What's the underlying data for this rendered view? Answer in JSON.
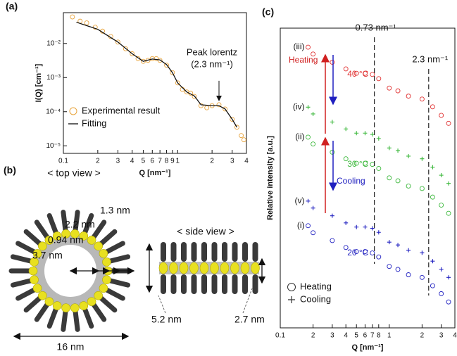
{
  "chart_data": [
    {
      "type": "scatter",
      "panel_label": "(a)",
      "x_label": "Q [nm⁻¹]",
      "y_label": "I(Q) [cm⁻¹]",
      "xlog": true,
      "ylog": true,
      "xlim": [
        0.1,
        4
      ],
      "ylim": [
        6e-06,
        0.08
      ],
      "xticks": [
        0.1,
        {
          "value": 0.2,
          "label": "2"
        },
        {
          "value": 0.3,
          "label": "3"
        },
        {
          "value": 0.4,
          "label": "4"
        },
        {
          "value": 0.5,
          "label": "5"
        },
        {
          "value": 0.6,
          "label": "6"
        },
        {
          "value": 0.7,
          "label": "7"
        },
        {
          "value": 0.8,
          "label": "8"
        },
        {
          "value": 0.9,
          "label": "9"
        },
        1,
        2,
        3,
        4
      ],
      "yticks": [
        {
          "value": 0.01,
          "label": "10⁻²"
        },
        {
          "value": 0.001,
          "label": "10⁻³"
        },
        {
          "value": 0.0001,
          "label": "10⁻⁴"
        },
        {
          "value": 1e-05,
          "label": "10⁻⁵"
        }
      ],
      "legend": "lower left",
      "annotation": {
        "x": 2.3,
        "y": 0.00016,
        "lines": [
          "Peak lorentz",
          "(2.3 nm⁻¹)"
        ]
      },
      "series": [
        {
          "name": "Experimental result",
          "color": "#e8a33a",
          "style": "markers",
          "marker": "circle",
          "x": [
            0.12,
            0.14,
            0.16,
            0.19,
            0.22,
            0.26,
            0.3,
            0.35,
            0.4,
            0.45,
            0.5,
            0.55,
            0.6,
            0.65,
            0.7,
            0.8,
            0.9,
            1.0,
            1.1,
            1.2,
            1.3,
            1.4,
            1.6,
            1.8,
            2.0,
            2.3,
            2.6,
            3.0,
            3.3,
            3.6,
            3.8
          ],
          "values": [
            0.06,
            0.045,
            0.04,
            0.03,
            0.023,
            0.016,
            0.011,
            0.007,
            0.005,
            0.0036,
            0.003,
            0.0032,
            0.0036,
            0.0036,
            0.0032,
            0.0023,
            0.0014,
            0.0007,
            0.00045,
            0.00038,
            0.00035,
            0.00028,
            0.00015,
            0.00013,
            0.00015,
            0.00016,
            0.00012,
            6e-05,
            3.5e-05,
            2e-05,
            1.5e-05
          ]
        },
        {
          "name": "Fitting",
          "color": "#111111",
          "style": "line",
          "x": [
            0.13,
            0.2,
            0.3,
            0.4,
            0.5,
            0.6,
            0.7,
            0.8,
            0.9,
            1.0,
            1.2,
            1.4,
            1.6,
            2.0,
            2.3,
            2.6,
            3.0,
            3.3
          ],
          "values": [
            0.042,
            0.026,
            0.011,
            0.005,
            0.003,
            0.0035,
            0.0033,
            0.0024,
            0.0014,
            0.0007,
            0.00038,
            0.00029,
            0.00016,
            0.00015,
            0.00015,
            0.00012,
            6e-05,
            3.5e-05
          ]
        }
      ]
    },
    {
      "type": "scatter",
      "panel_label": "(c)",
      "x_label": "Q [nm⁻¹]",
      "y_label": "Relative intensity [a.u.]",
      "xlog": true,
      "ylog": true,
      "xlim": [
        0.1,
        4
      ],
      "ylim": [
        1e-11,
        1
      ],
      "xticks": [
        0.1,
        {
          "value": 0.2,
          "label": "2"
        },
        {
          "value": 0.3,
          "label": "3"
        },
        {
          "value": 0.4,
          "label": "4"
        },
        {
          "value": 0.5,
          "label": "5"
        },
        {
          "value": 0.6,
          "label": "6"
        },
        {
          "value": 0.7,
          "label": "7"
        },
        {
          "value": 0.8,
          "label": "8"
        },
        1,
        2,
        3,
        4
      ],
      "vlines": [
        {
          "value": 0.73,
          "label": "0.73 nm⁻¹"
        },
        {
          "value": 2.3,
          "label": "2.3 nm⁻¹"
        }
      ],
      "heating_label": "Heating",
      "cooling_label": "Cooling",
      "legend_entries": [
        {
          "marker": "circle",
          "label": "Heating"
        },
        {
          "marker": "plus",
          "label": "Cooling"
        }
      ],
      "legend": "lower left",
      "x": [
        0.18,
        0.2,
        0.3,
        0.4,
        0.5,
        0.6,
        0.7,
        0.8,
        1.0,
        1.2,
        1.5,
        2.0,
        2.5,
        3.0,
        3.5
      ],
      "series": [
        {
          "name": "(iii)",
          "temperature": "40 °C",
          "color": "#e03030",
          "style": "markers",
          "marker": "circle",
          "values": [
            0.2,
            0.112,
            0.056,
            0.032,
            0.022,
            0.022,
            0.02,
            0.014,
            0.0063,
            0.005,
            0.0032,
            0.0025,
            0.0013,
            0.00063,
            0.00032
          ]
        },
        {
          "name": "(iv)",
          "color": "#3cb83c",
          "style": "markers",
          "marker": "plus",
          "values": [
            0.00126,
            0.00071,
            0.00036,
            0.0002,
            0.00014,
            0.00014,
            0.000126,
            8.9e-05,
            4e-05,
            3.2e-05,
            2e-05,
            1.6e-05,
            7.9e-06,
            4e-06,
            2e-06
          ]
        },
        {
          "name": "(ii)",
          "temperature": "30 °C",
          "color": "#3cb83c",
          "style": "markers",
          "marker": "circle",
          "values": [
            0.0001,
            5.6e-05,
            2.8e-05,
            1.6e-05,
            1.1e-05,
            1.1e-05,
            1e-05,
            7.1e-06,
            3.2e-06,
            2.5e-06,
            1.6e-06,
            1.3e-06,
            6.3e-07,
            3.2e-07,
            1.6e-07
          ]
        },
        {
          "name": "(v)",
          "color": "#2020c0",
          "style": "markers",
          "marker": "plus",
          "values": [
            4.5e-07,
            2.5e-07,
            1.3e-07,
            7.1e-08,
            5e-08,
            5e-08,
            4.5e-08,
            3.2e-08,
            1.4e-08,
            1.1e-08,
            7.1e-09,
            5.7e-09,
            2.8e-09,
            1.4e-09,
            7.1e-10
          ]
        },
        {
          "name": "(i)",
          "temperature": "20 °C",
          "color": "#2020c0",
          "style": "markers",
          "marker": "circle",
          "values": [
            5.6e-08,
            3.1e-08,
            1.6e-08,
            8.9e-09,
            6.3e-09,
            6.3e-09,
            5.6e-09,
            4e-09,
            1.8e-09,
            1.4e-09,
            8.9e-10,
            7.1e-10,
            3.5e-10,
            1.8e-10,
            8.9e-11
          ]
        }
      ]
    }
  ],
  "illustration": {
    "panel_label": "(b)",
    "top_view": "< top view >",
    "side_view": "< side view >",
    "labels": [
      "1.3 nm",
      "2.2 nm",
      "0.94 nm",
      "3.7 nm",
      "16 nm",
      "5.2 nm",
      "2.7 nm"
    ]
  }
}
